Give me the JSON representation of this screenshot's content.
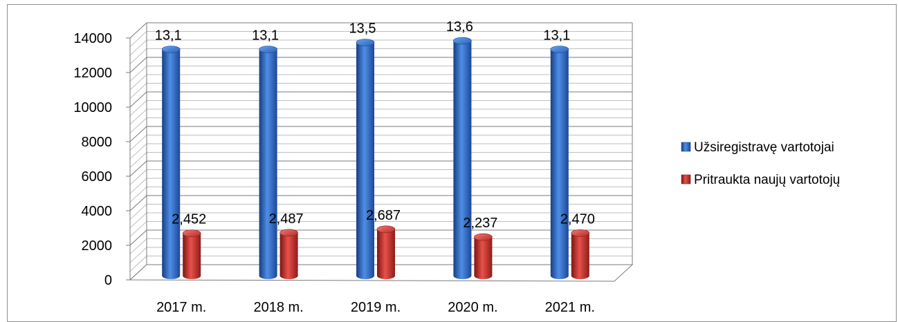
{
  "chart_data": {
    "type": "bar",
    "categories": [
      "2017 m.",
      "2018 m.",
      "2019 m.",
      "2020 m.",
      "2021 m."
    ],
    "series": [
      {
        "name": "Užsiregistravę vartotojai",
        "values": [
          13100,
          13100,
          13500,
          13600,
          13100
        ],
        "labels": [
          "13,1",
          "13,1",
          "13,5",
          "13,6",
          "13,1"
        ],
        "color": "#2e6cc4"
      },
      {
        "name": "Pritraukta naujų vartotojų",
        "values": [
          2452,
          2487,
          2687,
          2237,
          2470
        ],
        "labels": [
          "2,452",
          "2,487",
          "2,687",
          "2,237",
          "2,470"
        ],
        "color": "#c8302c"
      }
    ],
    "yticks": [
      "0",
      "2000",
      "4000",
      "6000",
      "8000",
      "10000",
      "12000",
      "14000"
    ],
    "ylim": [
      0,
      14000
    ],
    "grid": true,
    "style": "3d-cylinder",
    "legend_position": "right"
  }
}
